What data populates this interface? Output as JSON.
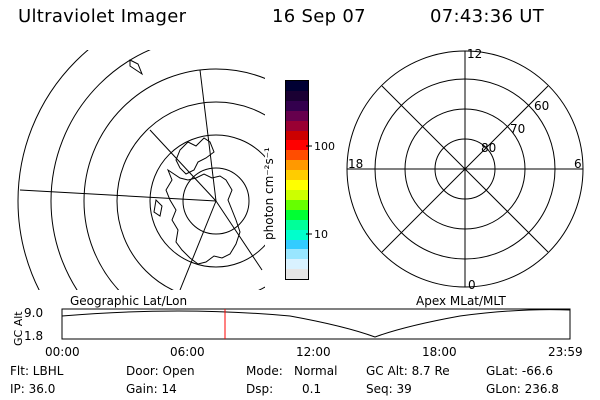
{
  "header": {
    "instrument": "Ultraviolet Imager",
    "date": "16 Sep 07",
    "time": "07:43:36 UT"
  },
  "colorbar": {
    "unit_label": "photon cm⁻²s⁻¹",
    "ticks": [
      "100",
      "10"
    ],
    "colors": [
      "#000033",
      "#1a0033",
      "#33004d",
      "#66004d",
      "#990033",
      "#cc0000",
      "#ff0000",
      "#ff4d00",
      "#ff9900",
      "#ffcc00",
      "#ffff00",
      "#ccff00",
      "#66ff00",
      "#00ff33",
      "#00ff99",
      "#00ffcc",
      "#33ccff",
      "#99e6ff",
      "#d9f2ff",
      "#e6e6e6"
    ]
  },
  "geo_panel": {
    "label": "Geographic Lat/Lon"
  },
  "apex_panel": {
    "label": "Apex MLat/MLT",
    "mlt_labels": {
      "top": "12",
      "left": "18",
      "right": "6",
      "bottom": "0"
    },
    "lat_labels": [
      "80",
      "70",
      "60"
    ]
  },
  "altitude_plot": {
    "ylabel": "GC Alt",
    "yticks": [
      "9.0",
      "1.8"
    ],
    "xticks": [
      "00:00",
      "06:00",
      "12:00",
      "18:00",
      "23:59"
    ],
    "current_time_marker": "07:43",
    "marker_color": "#ff0000"
  },
  "footer": {
    "filter": "Flt: LBHL",
    "door": "Door: Open",
    "mode_label": "Mode:",
    "mode_value": "Normal",
    "gc_alt": "GC Alt: 8.7 Re",
    "glat": "GLat: -66.6",
    "ip": "IP: 36.0",
    "gain": "Gain: 14",
    "dsp_label": "Dsp:",
    "dsp_value": "0.1",
    "seq": "Seq: 39",
    "glon": "GLon: 236.8"
  }
}
